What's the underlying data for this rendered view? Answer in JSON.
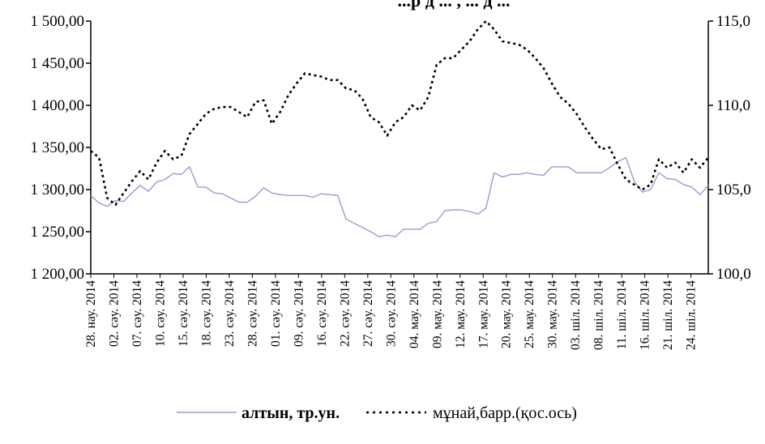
{
  "chart_data": {
    "type": "line",
    "title": "...р  д  ... , ...  д  ...",
    "y_left": {
      "ylim": [
        1200,
        1500
      ],
      "ticks": [
        "1 200,00",
        "1 250,00",
        "1 300,00",
        "1 350,00",
        "1 400,00",
        "1 450,00",
        "1 500,00"
      ]
    },
    "y_right": {
      "ylim": [
        100,
        115
      ],
      "ticks": [
        "100,0",
        "105,0",
        "110,0",
        "115,0"
      ]
    },
    "grid": false,
    "legend_position": "bottom",
    "x_tick_labels": [
      "28. нау. 2014",
      "02. сәу. 2014",
      "07. сәу. 2014",
      "10. сәу. 2014",
      "15. сәу. 2014",
      "18. сәу. 2014",
      "23. сәу. 2014",
      "28. сәу. 2014",
      "01. сәу. 2014",
      "09. сәу. 2014",
      "16. сәу. 2014",
      "22. сәу. 2014",
      "27. сәу. 2014",
      "30. сәу. 2014",
      "04. мау. 2014",
      "09. мау. 2014",
      "12. мау. 2014",
      "17. мау. 2014",
      "20. мау. 2014",
      "25. мау. 2014",
      "30. мау. 2014",
      "03. шіл. 2014",
      "08. шіл. 2014",
      "11. шіл. 2014",
      "16. шіл. 2014",
      "21. шіл. 2014",
      "24. шіл. 2014"
    ],
    "series": [
      {
        "name": "алтын, тр.ун.",
        "axis": "left",
        "color": "#9b9bd6",
        "style": "solid",
        "values": [
          1293,
          1284,
          1280,
          1287,
          1286,
          1296,
          1305,
          1298,
          1309,
          1312,
          1319,
          1318,
          1327,
          1303,
          1303,
          1296,
          1295,
          1290,
          1285,
          1285,
          1292,
          1302,
          1296,
          1294,
          1293,
          1293,
          1293,
          1291,
          1295,
          1294,
          1293,
          1265,
          1260,
          1255,
          1250,
          1244,
          1246,
          1244,
          1253,
          1253,
          1253,
          1260,
          1262,
          1275,
          1276,
          1276,
          1274,
          1271,
          1278,
          1320,
          1315,
          1318,
          1318,
          1320,
          1318,
          1317,
          1327,
          1327,
          1327,
          1320,
          1320,
          1320,
          1320,
          1326,
          1333,
          1338,
          1310,
          1297,
          1300,
          1320,
          1313,
          1312,
          1306,
          1303,
          1294,
          1305
        ]
      },
      {
        "name": "мұнай,барр.(қос.ось)",
        "axis": "right",
        "color": "#000000",
        "style": "dotted",
        "values": [
          107.3,
          106.9,
          104.5,
          104.1,
          104.8,
          105.5,
          106.1,
          105.6,
          106.6,
          107.3,
          106.8,
          107.0,
          108.3,
          108.9,
          109.5,
          109.8,
          109.9,
          109.9,
          109.6,
          109.3,
          110.2,
          110.3,
          108.9,
          109.6,
          110.6,
          111.3,
          111.9,
          111.8,
          111.7,
          111.5,
          111.5,
          111.0,
          110.9,
          110.4,
          109.3,
          109.0,
          108.2,
          109.0,
          109.3,
          110.0,
          109.7,
          110.5,
          112.4,
          112.8,
          112.8,
          113.3,
          113.8,
          114.5,
          115.0,
          114.5,
          113.8,
          113.7,
          113.6,
          113.3,
          112.8,
          112.2,
          111.3,
          110.5,
          110.1,
          109.5,
          108.7,
          108.0,
          107.4,
          107.5,
          106.5,
          105.6,
          105.3,
          105.0,
          105.3,
          106.8,
          106.3,
          106.6,
          106.0,
          106.8,
          106.3,
          106.9
        ]
      }
    ]
  }
}
